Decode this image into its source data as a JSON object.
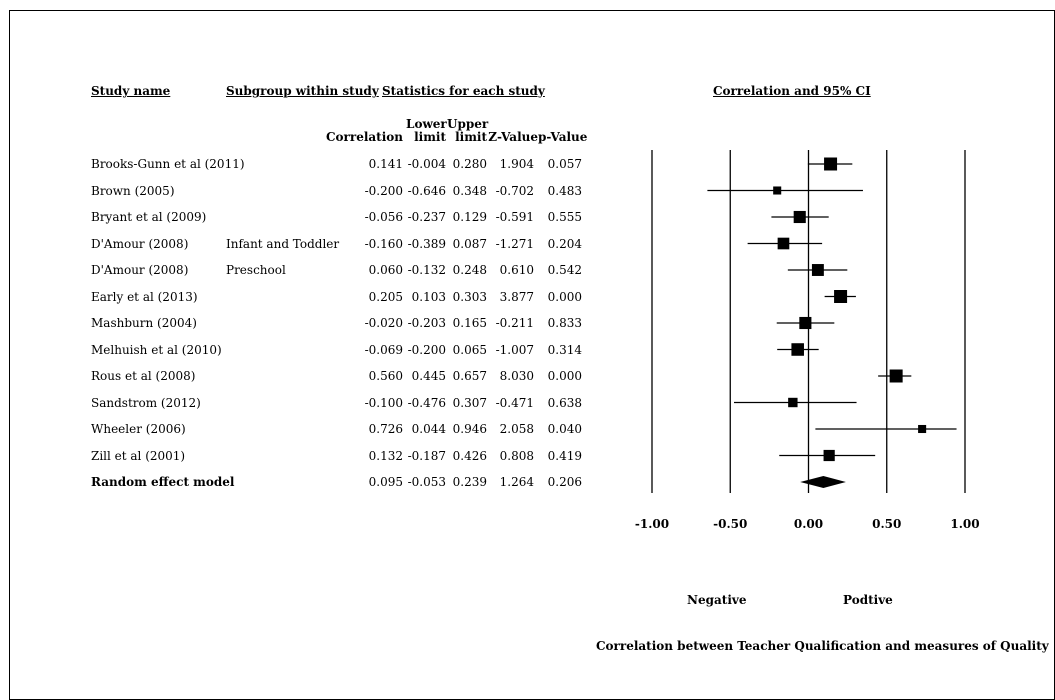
{
  "headers": {
    "study_name": "Study name",
    "subgroup": "Subgroup within study",
    "statistics": "Statistics for each study",
    "plot_title": "Correlation and 95% CI"
  },
  "columns": {
    "correlation": "Correlation",
    "lower_top": "Lower",
    "lower_bottom": "limit",
    "upper_top": "Upper",
    "upper_bottom": "limit",
    "zvalue": "Z-Value",
    "pvalue": "p-Value"
  },
  "chart_data": {
    "type": "forest",
    "xlabel": "Correlation between Teacher Qualification and measures of Quality",
    "xlim": [
      -1.0,
      1.0
    ],
    "ticks": [
      "-1.00",
      "-0.50",
      "0.00",
      "0.50",
      "1.00"
    ],
    "tick_values": [
      -1.0,
      -0.5,
      0.0,
      0.5,
      1.0
    ],
    "direction_labels": {
      "negative": "Negative",
      "positive": "Podtive"
    },
    "rows": [
      {
        "study": "Brooks-Gunn et al (2011)",
        "subgroup": "",
        "correlation": "0.141",
        "lower": "-0.004",
        "upper": "0.280",
        "z": "1.904",
        "p": "0.057",
        "weight": 1.0
      },
      {
        "study": "Brown (2005)",
        "subgroup": "",
        "correlation": "-0.200",
        "lower": "-0.646",
        "upper": "0.348",
        "z": "-0.702",
        "p": "0.483",
        "weight": 0.45
      },
      {
        "study": "Bryant et al (2009)",
        "subgroup": "",
        "correlation": "-0.056",
        "lower": "-0.237",
        "upper": "0.129",
        "z": "-0.591",
        "p": "0.555",
        "weight": 0.9
      },
      {
        "study": "D'Amour (2008)",
        "subgroup": "Infant and Toddler",
        "correlation": "-0.160",
        "lower": "-0.389",
        "upper": "0.087",
        "z": "-1.271",
        "p": "0.204",
        "weight": 0.85
      },
      {
        "study": "D'Amour (2008)",
        "subgroup": "Preschool",
        "correlation": "0.060",
        "lower": "-0.132",
        "upper": "0.248",
        "z": "0.610",
        "p": "0.542",
        "weight": 0.88
      },
      {
        "study": "Early et al (2013)",
        "subgroup": "",
        "correlation": "0.205",
        "lower": "0.103",
        "upper": "0.303",
        "z": "3.877",
        "p": "0.000",
        "weight": 1.0
      },
      {
        "study": "Mashburn (2004)",
        "subgroup": "",
        "correlation": "-0.020",
        "lower": "-0.203",
        "upper": "0.165",
        "z": "-0.211",
        "p": "0.833",
        "weight": 0.9
      },
      {
        "study": "Melhuish et al (2010)",
        "subgroup": "",
        "correlation": "-0.069",
        "lower": "-0.200",
        "upper": "0.065",
        "z": "-1.007",
        "p": "0.314",
        "weight": 0.95
      },
      {
        "study": "Rous et al (2008)",
        "subgroup": "",
        "correlation": "0.560",
        "lower": "0.445",
        "upper": "0.657",
        "z": "8.030",
        "p": "0.000",
        "weight": 1.0
      },
      {
        "study": "Sandstrom (2012)",
        "subgroup": "",
        "correlation": "-0.100",
        "lower": "-0.476",
        "upper": "0.307",
        "z": "-0.471",
        "p": "0.638",
        "weight": 0.6
      },
      {
        "study": "Wheeler (2006)",
        "subgroup": "",
        "correlation": "0.726",
        "lower": "0.044",
        "upper": "0.946",
        "z": "2.058",
        "p": "0.040",
        "weight": 0.45
      },
      {
        "study": "Zill et al (2001)",
        "subgroup": "",
        "correlation": "0.132",
        "lower": "-0.187",
        "upper": "0.426",
        "z": "0.808",
        "p": "0.419",
        "weight": 0.8
      }
    ],
    "summary": {
      "study": "Random effect model",
      "correlation": "0.095",
      "lower": "-0.053",
      "upper": "0.239",
      "z": "1.264",
      "p": "0.206"
    }
  }
}
